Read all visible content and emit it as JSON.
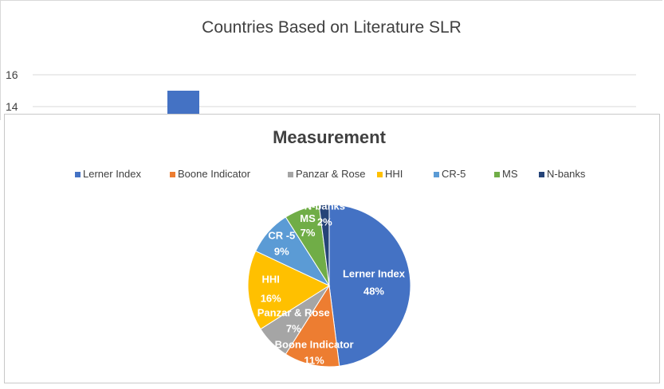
{
  "chart_data": [
    {
      "type": "bar",
      "title": "Countries Based on Literature SLR",
      "y_ticks": [
        "16",
        "14"
      ],
      "visible_bar_value": 15,
      "ylim": [
        14,
        16
      ],
      "grid": true,
      "color": "#4472C4"
    },
    {
      "type": "pie",
      "title": "Measurement",
      "legend_position": "top",
      "categories": [
        "Lerner Index",
        "Boone Indicator",
        "Panzar & Rose",
        "HHI",
        "CR-5",
        "MS",
        "N-banks"
      ],
      "values": [
        48,
        11,
        7,
        16,
        9,
        7,
        2
      ],
      "labels": [
        "48%",
        "11%",
        "7%",
        "16%",
        "9%",
        "7%",
        "2%"
      ],
      "slice_labels": [
        "Lerner Index",
        "Boone Indicator",
        "Panzar & Rose",
        "HHI",
        "CR -5",
        "MS",
        "N-banks"
      ],
      "colors": [
        "#4472C4",
        "#ED7D31",
        "#A5A5A5",
        "#FFC000",
        "#5B9BD5",
        "#70AD47",
        "#264478"
      ]
    }
  ]
}
